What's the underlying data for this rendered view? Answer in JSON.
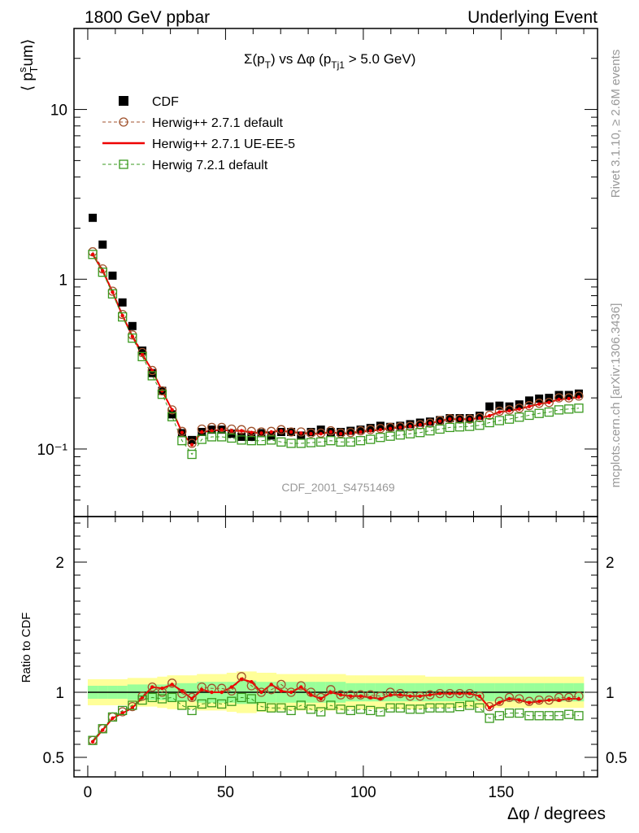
{
  "header": {
    "left": "1800 GeV ppbar",
    "right": "Underlying Event"
  },
  "side_labels": {
    "top": "Rivet 3.1.10, ≥ 2.6M events",
    "bottom": "mcplots.cern.ch [arXiv:1306.3436]"
  },
  "watermark": "CDF_2001_S4751469",
  "chart_data": [
    {
      "type": "scatter",
      "panel": "main",
      "title": "Σ(p_T) vs Δφ (p_Tj1 > 5.0 GeV)",
      "ylabel": "⟨ p_T^s um⟩",
      "yscale": "log",
      "ylim": [
        0.04,
        30
      ],
      "xlim": [
        -5,
        185
      ],
      "yticks": [
        {
          "v": 0.1,
          "label": "10⁻¹"
        },
        {
          "v": 1,
          "label": "1"
        },
        {
          "v": 10,
          "label": "10"
        }
      ],
      "legend_position": "top-left",
      "x": [
        1.8,
        5.4,
        9.0,
        12.6,
        16.2,
        19.8,
        23.4,
        27.0,
        30.6,
        34.2,
        37.8,
        41.4,
        45.0,
        48.6,
        52.2,
        55.8,
        59.4,
        63.0,
        66.6,
        70.2,
        73.8,
        77.4,
        81.0,
        84.6,
        88.2,
        91.8,
        95.4,
        99.0,
        102.6,
        106.2,
        109.8,
        113.4,
        117.0,
        120.6,
        124.2,
        127.8,
        131.4,
        135.0,
        138.6,
        142.2,
        145.8,
        149.4,
        153.0,
        156.6,
        160.2,
        163.8,
        167.4,
        171.0,
        174.6,
        178.2
      ],
      "series": [
        {
          "name": "CDF",
          "style": "data",
          "color": "#000000",
          "values": [
            2.3,
            1.6,
            1.05,
            0.73,
            0.53,
            0.38,
            0.28,
            0.22,
            0.16,
            0.124,
            0.113,
            0.126,
            0.13,
            0.13,
            0.123,
            0.118,
            0.118,
            0.124,
            0.12,
            0.126,
            0.126,
            0.12,
            0.126,
            0.13,
            0.126,
            0.126,
            0.128,
            0.13,
            0.133,
            0.137,
            0.135,
            0.137,
            0.14,
            0.143,
            0.145,
            0.148,
            0.152,
            0.152,
            0.152,
            0.157,
            0.178,
            0.18,
            0.178,
            0.183,
            0.193,
            0.198,
            0.2,
            0.208,
            0.208,
            0.212
          ]
        },
        {
          "name": "Herwig++ 2.7.1 default",
          "style": "circle-dashed",
          "color": "#a0522d",
          "values": [
            1.45,
            1.15,
            0.85,
            0.62,
            0.47,
            0.37,
            0.29,
            0.22,
            0.17,
            0.127,
            0.108,
            0.131,
            0.134,
            0.134,
            0.131,
            0.13,
            0.127,
            0.126,
            0.127,
            0.13,
            0.126,
            0.126,
            0.124,
            0.124,
            0.128,
            0.124,
            0.125,
            0.128,
            0.13,
            0.132,
            0.134,
            0.135,
            0.136,
            0.139,
            0.142,
            0.147,
            0.151,
            0.15,
            0.15,
            0.153,
            0.158,
            0.167,
            0.17,
            0.174,
            0.18,
            0.186,
            0.188,
            0.2,
            0.2,
            0.205
          ]
        },
        {
          "name": "Herwig++ 2.7.1 UE-EE-5",
          "style": "line",
          "color": "#ee0000",
          "values": [
            1.4,
            1.12,
            0.84,
            0.61,
            0.46,
            0.36,
            0.29,
            0.22,
            0.17,
            0.125,
            0.106,
            0.126,
            0.128,
            0.13,
            0.128,
            0.128,
            0.125,
            0.124,
            0.126,
            0.128,
            0.126,
            0.124,
            0.123,
            0.123,
            0.126,
            0.123,
            0.124,
            0.126,
            0.128,
            0.13,
            0.132,
            0.134,
            0.136,
            0.139,
            0.142,
            0.146,
            0.15,
            0.15,
            0.15,
            0.152,
            0.157,
            0.165,
            0.168,
            0.172,
            0.178,
            0.184,
            0.188,
            0.196,
            0.198,
            0.202
          ]
        },
        {
          "name": "Herwig 7.2.1 default",
          "style": "square-dashed",
          "color": "#3a9a1f",
          "values": [
            1.4,
            1.1,
            0.82,
            0.6,
            0.45,
            0.35,
            0.27,
            0.21,
            0.155,
            0.112,
            0.093,
            0.114,
            0.118,
            0.118,
            0.116,
            0.113,
            0.112,
            0.112,
            0.113,
            0.11,
            0.108,
            0.108,
            0.109,
            0.11,
            0.112,
            0.11,
            0.11,
            0.112,
            0.114,
            0.117,
            0.119,
            0.121,
            0.123,
            0.125,
            0.128,
            0.131,
            0.134,
            0.135,
            0.136,
            0.138,
            0.143,
            0.147,
            0.15,
            0.154,
            0.158,
            0.162,
            0.165,
            0.17,
            0.172,
            0.174
          ]
        }
      ]
    },
    {
      "type": "scatter",
      "panel": "ratio",
      "ylabel": "Ratio to CDF",
      "xlabel": "Δφ / degrees",
      "ylim": [
        0.35,
        2.35
      ],
      "xlim": [
        -5,
        185
      ],
      "xticks": [
        0,
        50,
        100,
        150
      ],
      "yticks": [
        0.5,
        1,
        2
      ],
      "x": [
        1.8,
        5.4,
        9.0,
        12.6,
        16.2,
        19.8,
        23.4,
        27.0,
        30.6,
        34.2,
        37.8,
        41.4,
        45.0,
        48.6,
        52.2,
        55.8,
        59.4,
        63.0,
        66.6,
        70.2,
        73.8,
        77.4,
        81.0,
        84.6,
        88.2,
        91.8,
        95.4,
        99.0,
        102.6,
        106.2,
        109.8,
        113.4,
        117.0,
        120.6,
        124.2,
        127.8,
        131.4,
        135.0,
        138.6,
        142.2,
        145.8,
        149.4,
        153.0,
        156.6,
        160.2,
        163.8,
        167.4,
        171.0,
        174.6,
        178.2
      ],
      "band_inner_halfwidth": [
        0.05,
        0.05,
        0.05,
        0.05,
        0.06,
        0.06,
        0.06,
        0.06,
        0.07,
        0.07,
        0.07,
        0.08,
        0.08,
        0.08,
        0.08,
        0.09,
        0.09,
        0.08,
        0.08,
        0.08,
        0.08,
        0.08,
        0.08,
        0.08,
        0.08,
        0.08,
        0.07,
        0.07,
        0.07,
        0.07,
        0.07,
        0.07,
        0.07,
        0.07,
        0.07,
        0.07,
        0.07,
        0.07,
        0.07,
        0.07,
        0.07,
        0.07,
        0.07,
        0.07,
        0.07,
        0.07,
        0.07,
        0.07,
        0.07,
        0.07
      ],
      "band_outer_halfwidth": [
        0.1,
        0.1,
        0.1,
        0.1,
        0.11,
        0.11,
        0.11,
        0.12,
        0.13,
        0.13,
        0.13,
        0.14,
        0.14,
        0.14,
        0.15,
        0.16,
        0.16,
        0.15,
        0.15,
        0.14,
        0.14,
        0.14,
        0.14,
        0.14,
        0.14,
        0.14,
        0.13,
        0.13,
        0.13,
        0.13,
        0.13,
        0.13,
        0.13,
        0.13,
        0.12,
        0.12,
        0.12,
        0.12,
        0.12,
        0.12,
        0.12,
        0.12,
        0.12,
        0.12,
        0.12,
        0.12,
        0.12,
        0.12,
        0.12,
        0.12
      ],
      "series": [
        {
          "name": "Herwig++ 2.7.1 default",
          "style": "circle-dashed",
          "color": "#a0522d",
          "values": [
            0.63,
            0.72,
            0.81,
            0.85,
            0.89,
            0.97,
            1.04,
            1.0,
            1.07,
            0.99,
            0.96,
            1.04,
            1.03,
            1.03,
            1.01,
            1.12,
            1.05,
            1.0,
            1.02,
            1.06,
            1.0,
            1.05,
            1.0,
            0.96,
            1.02,
            0.98,
            0.98,
            0.98,
            0.98,
            0.97,
            1.0,
            0.99,
            0.97,
            0.97,
            0.98,
            0.99,
            0.99,
            0.99,
            0.99,
            0.97,
            0.89,
            0.93,
            0.96,
            0.95,
            0.93,
            0.94,
            0.94,
            0.96,
            0.96,
            0.97
          ]
        },
        {
          "name": "Herwig++ 2.7.1 UE-EE-5",
          "style": "line",
          "color": "#ee0000",
          "values": [
            0.62,
            0.71,
            0.8,
            0.84,
            0.88,
            0.96,
            1.04,
            1.03,
            1.06,
            1.01,
            0.95,
            1.02,
            1.0,
            1.0,
            1.04,
            1.1,
            1.08,
            1.0,
            1.06,
            1.01,
            1.0,
            1.04,
            0.98,
            0.95,
            1.0,
            0.98,
            0.97,
            0.97,
            0.96,
            0.95,
            0.98,
            0.98,
            0.97,
            0.97,
            0.98,
            0.99,
            0.99,
            0.99,
            0.99,
            0.97,
            0.88,
            0.92,
            0.95,
            0.94,
            0.92,
            0.93,
            0.94,
            0.94,
            0.95,
            0.95
          ]
        },
        {
          "name": "Herwig 7.2.1 default",
          "style": "square-dashed",
          "color": "#3a9a1f",
          "values": [
            0.63,
            0.72,
            0.81,
            0.86,
            0.9,
            0.94,
            0.96,
            0.95,
            0.96,
            0.9,
            0.86,
            0.91,
            0.92,
            0.91,
            0.93,
            0.96,
            0.95,
            0.89,
            0.88,
            0.88,
            0.86,
            0.9,
            0.87,
            0.85,
            0.9,
            0.87,
            0.86,
            0.87,
            0.86,
            0.85,
            0.88,
            0.88,
            0.87,
            0.87,
            0.88,
            0.88,
            0.88,
            0.89,
            0.9,
            0.88,
            0.8,
            0.82,
            0.84,
            0.84,
            0.82,
            0.82,
            0.82,
            0.82,
            0.83,
            0.82
          ]
        }
      ]
    }
  ]
}
